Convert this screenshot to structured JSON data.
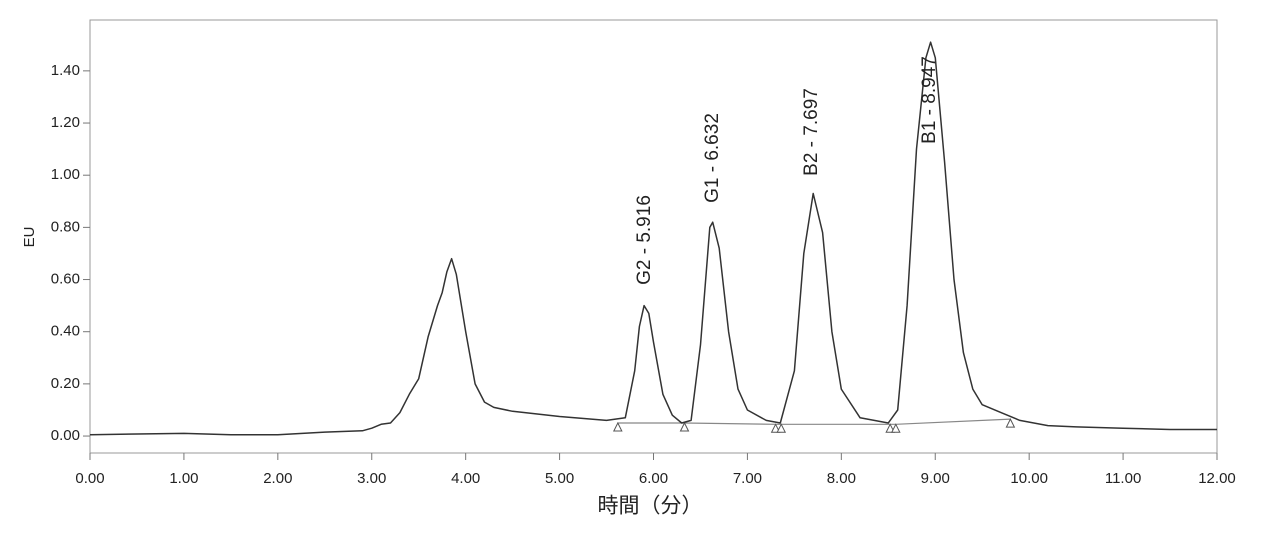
{
  "chart_data": {
    "type": "line",
    "xlabel": "時間（分）",
    "ylabel": "EU",
    "xlim": [
      0,
      12
    ],
    "ylim": [
      -0.065,
      1.595
    ],
    "xticks": [
      {
        "value": 0,
        "label": "0.00"
      },
      {
        "value": 1,
        "label": "1.00"
      },
      {
        "value": 2,
        "label": "2.00"
      },
      {
        "value": 3,
        "label": "3.00"
      },
      {
        "value": 4,
        "label": "4.00"
      },
      {
        "value": 5,
        "label": "5.00"
      },
      {
        "value": 6,
        "label": "6.00"
      },
      {
        "value": 7,
        "label": "7.00"
      },
      {
        "value": 8,
        "label": "8.00"
      },
      {
        "value": 9,
        "label": "9.00"
      },
      {
        "value": 10,
        "label": "10.00"
      },
      {
        "value": 11,
        "label": "11.00"
      },
      {
        "value": 12,
        "label": "12.00"
      }
    ],
    "yticks": [
      {
        "value": 0,
        "label": "0.00"
      },
      {
        "value": 0.2,
        "label": "0.20"
      },
      {
        "value": 0.4,
        "label": "0.40"
      },
      {
        "value": 0.6,
        "label": "0.60"
      },
      {
        "value": 0.8,
        "label": "0.80"
      },
      {
        "value": 1.0,
        "label": "1.00"
      },
      {
        "value": 1.2,
        "label": "1.20"
      },
      {
        "value": 1.4,
        "label": "1.40"
      }
    ],
    "color": "#333333",
    "x": [
      0,
      0.5,
      1,
      1.5,
      2,
      2.5,
      2.9,
      3,
      3.1,
      3.2,
      3.3,
      3.4,
      3.5,
      3.6,
      3.7,
      3.75,
      3.8,
      3.85,
      3.9,
      4,
      4.1,
      4.2,
      4.3,
      4.5,
      5,
      5.5,
      5.7,
      5.8,
      5.85,
      5.9,
      5.95,
      6,
      6.1,
      6.2,
      6.3,
      6.4,
      6.5,
      6.6,
      6.63,
      6.7,
      6.8,
      6.9,
      7,
      7.2,
      7.35,
      7.5,
      7.6,
      7.7,
      7.8,
      7.9,
      8,
      8.2,
      8.5,
      8.6,
      8.7,
      8.8,
      8.9,
      8.95,
      9,
      9.1,
      9.2,
      9.3,
      9.4,
      9.5,
      9.7,
      9.9,
      10.2,
      10.5,
      11,
      11.5,
      12
    ],
    "values": [
      0.005,
      0.008,
      0.01,
      0.005,
      0.005,
      0.015,
      0.02,
      0.03,
      0.045,
      0.05,
      0.09,
      0.16,
      0.22,
      0.38,
      0.5,
      0.55,
      0.63,
      0.68,
      0.62,
      0.4,
      0.2,
      0.13,
      0.11,
      0.095,
      0.075,
      0.06,
      0.07,
      0.25,
      0.42,
      0.5,
      0.47,
      0.36,
      0.16,
      0.08,
      0.05,
      0.06,
      0.35,
      0.8,
      0.82,
      0.72,
      0.4,
      0.18,
      0.1,
      0.06,
      0.05,
      0.25,
      0.7,
      0.93,
      0.78,
      0.4,
      0.18,
      0.07,
      0.05,
      0.1,
      0.5,
      1.1,
      1.45,
      1.51,
      1.45,
      1.05,
      0.6,
      0.32,
      0.18,
      0.12,
      0.09,
      0.06,
      0.04,
      0.035,
      0.03,
      0.025,
      0.025
    ],
    "integration_baseline": {
      "color": "#888888",
      "x": [
        5.62,
        6.33,
        7.3,
        7.36,
        8.52,
        8.58,
        9.8
      ],
      "values": [
        0.05,
        0.05,
        0.045,
        0.045,
        0.045,
        0.045,
        0.065
      ]
    },
    "annotations": [
      "G2 - 5.916",
      "G1 - 6.632",
      "B2 - 7.697",
      "B1 - 8.947"
    ]
  }
}
